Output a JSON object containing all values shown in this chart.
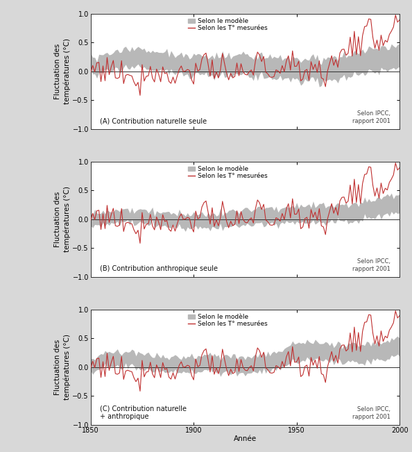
{
  "ylabel": "Fluctuation des\ntempératures (°C)",
  "xlabel": "Année",
  "xlim": [
    1850,
    2000
  ],
  "ylim": [
    -1.0,
    1.0
  ],
  "yticks": [
    -1.0,
    -0.5,
    0.0,
    0.5,
    1.0
  ],
  "xticks": [
    1850,
    1900,
    1950,
    2000
  ],
  "legend_model": "Selon le modèle",
  "legend_measured": "Selon les T° mesurées",
  "ipcc_text": "Selon IPCC,\nrapport 2001",
  "panel_labels": [
    "(A) Contribution naturelle seule",
    "(B) Contribution anthropique seule",
    "(C) Contribution naturelle\n+ anthropique"
  ],
  "bg_color": "#d8d8d8",
  "plot_bg_color": "#ffffff",
  "band_color": "#b8b8b8",
  "line_color": "#c03030",
  "zero_line_color": "#303030",
  "font_size": 7.5
}
